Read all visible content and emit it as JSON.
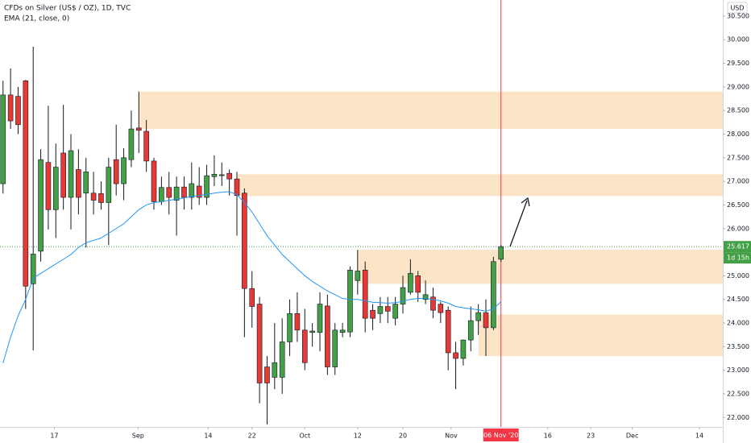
{
  "chart_data": {
    "type": "candlestick",
    "title": "CFDs on Silver (US$ / OZ), 1D, TVC",
    "currency": "USD",
    "up_color": "#43a047",
    "down_color": "#e53935",
    "x": [
      0,
      1,
      2,
      3,
      4,
      5,
      6,
      7,
      8,
      9,
      10,
      11,
      12,
      13,
      14,
      15,
      16,
      17,
      18,
      19,
      20,
      21,
      22,
      23,
      24,
      25,
      26,
      27,
      28,
      29,
      30,
      31,
      32,
      33,
      34,
      35,
      36,
      37,
      38,
      39,
      40,
      41,
      42,
      43,
      44,
      45,
      46,
      47,
      48,
      49,
      50,
      51,
      52,
      53,
      54,
      55,
      56,
      57,
      58,
      59,
      60,
      61,
      62,
      63,
      64,
      65,
      66
    ],
    "open": [
      26.95,
      28.83,
      28.8,
      29.13,
      24.83,
      25.52,
      27.4,
      26.4,
      27.6,
      26.66,
      27.25,
      26.75,
      26.75,
      26.74,
      26.55,
      27.46,
      26.95,
      27.46,
      28.13,
      28.06,
      27.43,
      26.57,
      26.87,
      26.6,
      26.88,
      26.66,
      26.9,
      26.66,
      27.1,
      27.12,
      27.17,
      27.05,
      26.75,
      24.73,
      24.4,
      23.07,
      22.85,
      22.85,
      23.6,
      24.2,
      23.85,
      23.8,
      23.8,
      24.36,
      23.07,
      23.8,
      23.81,
      24.9,
      25.12,
      24.27,
      24.2,
      24.35,
      24.1,
      24.4,
      24.65,
      25.0,
      24.5,
      24.55,
      24.4,
      24.27,
      23.37,
      23.25,
      23.64,
      24.05,
      24.22,
      23.9,
      25.35
    ],
    "high": [
      29.13,
      29.39,
      29.0,
      29.15,
      29.85,
      27.68,
      28.6,
      27.8,
      28.62,
      28.0,
      27.68,
      27.5,
      27.2,
      27.0,
      27.5,
      28.2,
      27.7,
      28.5,
      28.9,
      28.3,
      27.5,
      27.1,
      27.2,
      27.1,
      27.1,
      27.4,
      27.3,
      27.35,
      27.55,
      27.4,
      27.25,
      27.2,
      26.85,
      25.1,
      24.55,
      23.3,
      24.0,
      24.1,
      24.5,
      24.65,
      24.3,
      24.0,
      24.65,
      24.6,
      24.0,
      24.0,
      25.2,
      25.55,
      25.3,
      24.4,
      24.55,
      24.55,
      24.55,
      25.0,
      25.35,
      25.1,
      24.9,
      24.75,
      24.45,
      24.35,
      23.6,
      23.65,
      24.35,
      24.4,
      24.5,
      25.4,
      25.65
    ],
    "low": [
      26.74,
      28.11,
      28.0,
      24.3,
      23.42,
      25.3,
      25.98,
      25.8,
      26.4,
      25.98,
      26.3,
      25.6,
      26.3,
      26.4,
      25.65,
      26.7,
      26.6,
      27.3,
      27.6,
      27.2,
      26.4,
      26.5,
      26.3,
      25.85,
      26.4,
      26.4,
      26.5,
      26.5,
      26.9,
      26.9,
      26.7,
      25.85,
      23.7,
      23.9,
      22.3,
      21.85,
      22.6,
      22.5,
      23.3,
      23.6,
      23.0,
      23.5,
      23.4,
      22.9,
      22.9,
      23.7,
      23.7,
      24.6,
      23.8,
      23.85,
      24.0,
      24.0,
      23.95,
      24.2,
      24.6,
      24.45,
      24.4,
      24.1,
      24.0,
      23.0,
      22.6,
      23.1,
      23.4,
      23.75,
      23.3,
      23.85,
      25.3
    ],
    "close": [
      28.83,
      28.28,
      28.2,
      24.78,
      25.46,
      27.46,
      26.4,
      27.3,
      26.66,
      27.65,
      26.66,
      27.2,
      26.6,
      26.55,
      27.3,
      26.95,
      27.5,
      28.11,
      28.08,
      27.43,
      26.57,
      26.87,
      26.66,
      26.88,
      26.66,
      26.95,
      26.66,
      27.12,
      27.15,
      27.14,
      27.05,
      26.7,
      24.73,
      24.35,
      22.73,
      22.73,
      23.16,
      23.6,
      24.2,
      23.85,
      23.16,
      23.83,
      24.4,
      23.07,
      23.85,
      23.85,
      25.12,
      25.1,
      24.1,
      24.1,
      24.35,
      24.25,
      24.4,
      24.75,
      25.05,
      24.65,
      24.6,
      24.27,
      24.22,
      23.37,
      23.25,
      23.64,
      24.05,
      24.22,
      23.9,
      25.3,
      25.617
    ],
    "ema": {
      "name": "EMA (21, close, 0)",
      "color": "#2196f3",
      "values": [
        23.15,
        23.7,
        24.15,
        24.5,
        24.95,
        25.05,
        25.15,
        25.25,
        25.35,
        25.45,
        25.6,
        25.7,
        25.75,
        25.8,
        25.9,
        26.0,
        26.1,
        26.25,
        26.4,
        26.5,
        26.55,
        26.57,
        26.6,
        26.62,
        26.65,
        26.68,
        26.7,
        26.72,
        26.75,
        26.77,
        26.78,
        26.72,
        26.55,
        26.35,
        26.1,
        25.85,
        25.65,
        25.45,
        25.3,
        25.15,
        25.0,
        24.88,
        24.78,
        24.68,
        24.6,
        24.52,
        24.5,
        24.5,
        24.47,
        24.44,
        24.43,
        24.42,
        24.43,
        24.46,
        24.5,
        24.52,
        24.52,
        24.5,
        24.47,
        24.42,
        24.35,
        24.32,
        24.3,
        24.28,
        24.25,
        24.3,
        24.45
      ]
    },
    "zones": [
      {
        "top": 28.9,
        "bottom": 28.11,
        "start": 18
      },
      {
        "top": 27.15,
        "bottom": 26.69,
        "start": 31
      },
      {
        "top": 25.55,
        "bottom": 24.83,
        "start": 47
      },
      {
        "top": 24.18,
        "bottom": 23.3,
        "start": 63
      }
    ],
    "zone_color": "#fbe0bd",
    "countdown": "1d 15h",
    "crosshair": {
      "x": 66,
      "label": "06 Nov '20",
      "color": "#f23645"
    },
    "grid": false,
    "xlim": [
      -0.4,
      95.4
    ],
    "ylim": [
      21.8,
      30.84
    ],
    "xticks": [
      {
        "value": 6.8,
        "label": "17"
      },
      {
        "value": 17.9,
        "label": "Sep"
      },
      {
        "value": 27.2,
        "label": "14"
      },
      {
        "value": 33.0,
        "label": "22"
      },
      {
        "value": 40.0,
        "label": "Oct"
      },
      {
        "value": 47.0,
        "label": "12"
      },
      {
        "value": 53.0,
        "label": "20"
      },
      {
        "value": 59.4,
        "label": "Nov"
      },
      {
        "value": 72.2,
        "label": "16"
      },
      {
        "value": 77.9,
        "label": "23"
      },
      {
        "value": 83.4,
        "label": "Dec"
      },
      {
        "value": 92.3,
        "label": "14"
      }
    ],
    "yticks": [
      {
        "value": 22,
        "label": "22.000"
      },
      {
        "value": 22.5,
        "label": "22.500"
      },
      {
        "value": 23,
        "label": "23.000"
      },
      {
        "value": 23.5,
        "label": "23.500"
      },
      {
        "value": 24,
        "label": "24.000"
      },
      {
        "value": 24.5,
        "label": "24.500"
      },
      {
        "value": 25,
        "label": "25.000"
      },
      {
        "value": 25.5,
        "label": "25.500"
      },
      {
        "value": 26,
        "label": "26.000"
      },
      {
        "value": 26.5,
        "label": "26.500"
      },
      {
        "value": 27,
        "label": "27.000"
      },
      {
        "value": 27.5,
        "label": "27.500"
      },
      {
        "value": 28,
        "label": "28.000"
      },
      {
        "value": 28.5,
        "label": "28.500"
      },
      {
        "value": 29,
        "label": "29.000"
      },
      {
        "value": 29.5,
        "label": "29.500"
      },
      {
        "value": 30,
        "label": "30.000"
      },
      {
        "value": 30.5,
        "label": "30.500"
      }
    ]
  }
}
